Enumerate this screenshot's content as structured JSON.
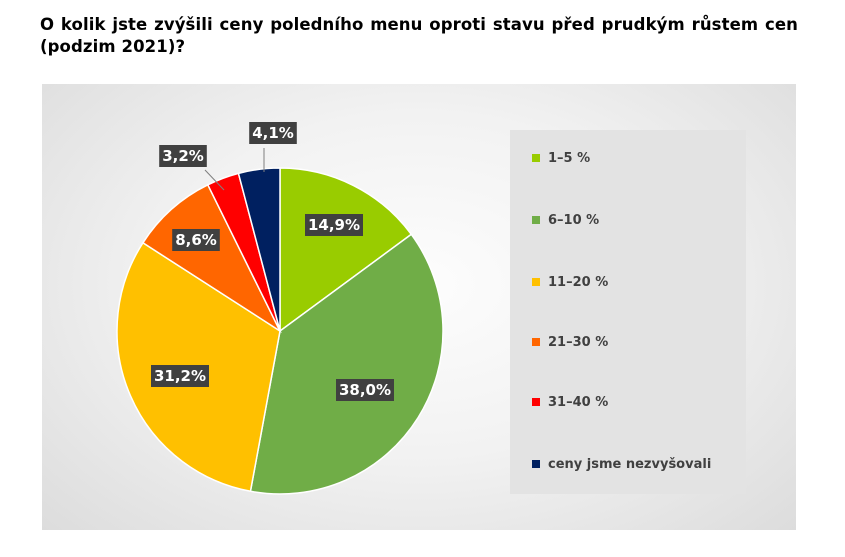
{
  "title": "O kolik jste zvýšili ceny poledního menu oproti stavu před prudkým růstem cen (podzim 2021)?",
  "chart_data": {
    "type": "pie",
    "title": "O kolik jste zvýšili ceny poledního menu oproti stavu před prudkým růstem cen (podzim 2021)?",
    "legend_position": "right",
    "slices": [
      {
        "label": "1–5 %",
        "value": 14.9,
        "display": "14,9%",
        "color": "#99cc00"
      },
      {
        "label": "6–10 %",
        "value": 38.0,
        "display": "38,0%",
        "color": "#70ad47"
      },
      {
        "label": "11–20 %",
        "value": 31.2,
        "display": "31,2%",
        "color": "#ffc000"
      },
      {
        "label": "21–30 %",
        "value": 8.6,
        "display": "8,6%",
        "color": "#ff6600"
      },
      {
        "label": "31–40 %",
        "value": 3.2,
        "display": "3,2%",
        "color": "#ff0000"
      },
      {
        "label": "ceny jsme nezvyšovali",
        "value": 4.1,
        "display": "4,1%",
        "color": "#002060"
      }
    ]
  }
}
